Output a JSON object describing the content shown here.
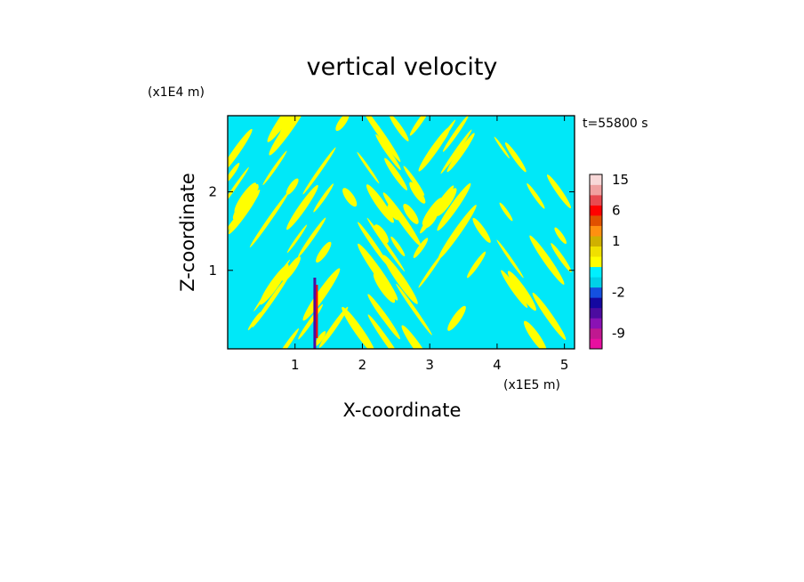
{
  "chart_data": {
    "type": "heatmap",
    "title": "vertical velocity",
    "xlabel": "X-coordinate",
    "ylabel": "Z-coordinate",
    "x_unit": "(x1E5 m)",
    "y_unit": "(x1E4 m)",
    "time_label": "t=55800 s",
    "xlim": [
      0,
      5.15
    ],
    "ylim": [
      0,
      2.97
    ],
    "x_ticks": [
      1,
      2,
      3,
      4,
      5
    ],
    "y_ticks": [
      1,
      2
    ],
    "x_tick_labels": [
      "1",
      "2",
      "3",
      "4",
      "5"
    ],
    "y_tick_labels": [
      "1",
      "2"
    ],
    "field_description": "contour-filled vertical velocity; dominated by alternating cyan (about -2 to 0) and yellow (about 0 to 1) bands tilted in a V pattern, with a narrow strong updraft/downdraft column near x=1.3",
    "colorbar": {
      "levels": [
        -12,
        -9,
        -6,
        -4,
        -3,
        -2,
        -1,
        -0.5,
        0,
        0.5,
        1,
        2,
        4,
        6,
        9,
        12,
        15,
        20
      ],
      "colors": [
        "#e80fa0",
        "#c01890",
        "#8a12b4",
        "#4c0ca0",
        "#1408a0",
        "#1450e0",
        "#00d0e8",
        "#00f0ff",
        "#ffff00",
        "#f0e000",
        "#d0b000",
        "#ff9010",
        "#e05000",
        "#ff0000",
        "#e84a50",
        "#f0a0a0",
        "#f8d8d8"
      ],
      "tick_labels": [
        "15",
        "6",
        "1",
        "-2",
        "-9"
      ],
      "tick_values": [
        15,
        6,
        1,
        -2,
        -9
      ]
    },
    "dominant_colors": {
      "negative": "#00e8f8",
      "positive": "#ffff00"
    }
  }
}
